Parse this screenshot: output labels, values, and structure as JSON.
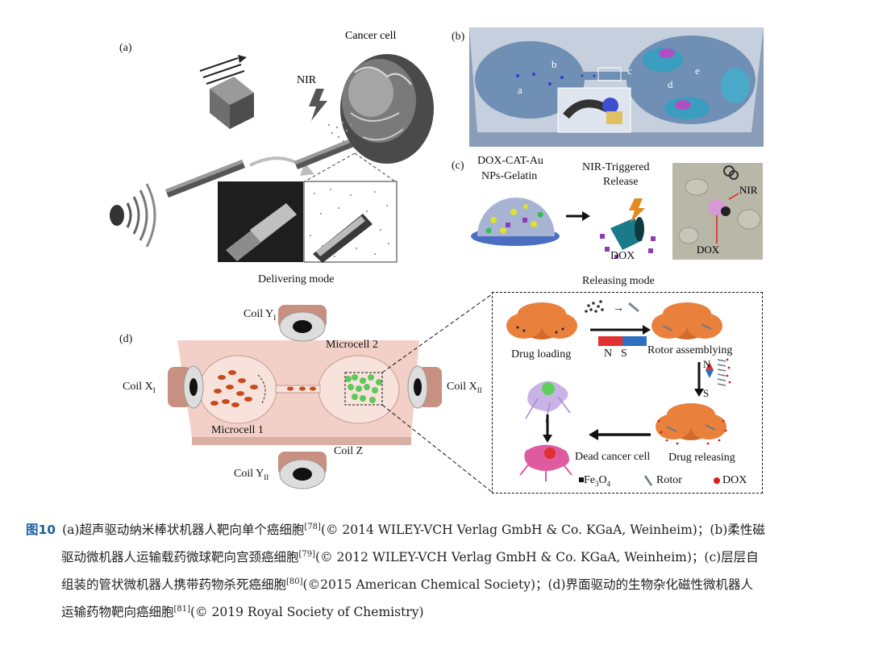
{
  "panel_a": {
    "tag": "(a)",
    "cancer_cell": "Cancer cell",
    "nir": "NIR"
  },
  "panel_b": {
    "tag": "(b)",
    "points": [
      "a",
      "b",
      "c",
      "d",
      "e"
    ]
  },
  "panel_c": {
    "tag": "(c)",
    "title_line1": "DOX-CAT-Au",
    "title_line2": "NPs-Gelatin",
    "release_line1": "NIR-Triggered",
    "release_line2": "Release",
    "dox": "DOX",
    "photo_nir": "NIR",
    "photo_dox": "DOX"
  },
  "panel_d": {
    "tag": "(d)",
    "delivering_mode": "Delivering mode",
    "releasing_mode": "Releasing mode",
    "coil_y1": "Coil Y",
    "coil_y1_sub": "I",
    "coil_y2": "Coil Y",
    "coil_y2_sub": "II",
    "coil_x1": "Coil X",
    "coil_x1_sub": "I",
    "coil_x2": "Coil X",
    "coil_x2_sub": "II",
    "coil_z": "Coil Z",
    "microcell1": "Microcell 1",
    "microcell2": "Microcell 2",
    "drug_loading": "Drug loading",
    "rotor_assembling": "Rotor assemblying",
    "n_label": "N",
    "s_label": "S",
    "drug_releasing": "Drug releasing",
    "dead_cell": "Dead cancer cell",
    "legend_fe": "Fe",
    "legend_fe_sub": "3",
    "legend_fe_tail": "O",
    "legend_fe_sub2": "4",
    "legend_rotor": "Rotor",
    "legend_dox": "DOX"
  },
  "caption": {
    "figure_label": "图10",
    "line1": "(a)超声驱动纳米棒状机器人靶向单个癌细胞",
    "ref1": "[78]",
    "line1b": "(© 2014 WILEY-VCH Verlag GmbH & Co. KGaA, Weinheim)；(b)柔性磁",
    "line2": "驱动微机器人运输载药微球靶向宫颈癌细胞",
    "ref2": "[79]",
    "line2b": "(© 2012 WILEY-VCH Verlag GmbH & Co. KGaA, Weinheim)；(c)层层自",
    "line3": "组装的管状微机器人携带药物杀死癌细胞",
    "ref3": "[80]",
    "line3b": "(©2015 American Chemical Society)；(d)界面驱动的生物杂化磁性微机器人",
    "line4": "运输药物靶向癌细胞",
    "ref4": "[81]",
    "line4b": "(© 2019 Royal Society of Chemistry)"
  },
  "colors": {
    "caption_label": "#1f5f9e",
    "chip_pink": "#f2c9c0",
    "chamber_blue": "#6f8fb4",
    "rotor_orange": "#e07a3a",
    "magnet_red": "#e03030",
    "magnet_blue": "#2f6fc0",
    "dox_red": "#d81e1e"
  }
}
